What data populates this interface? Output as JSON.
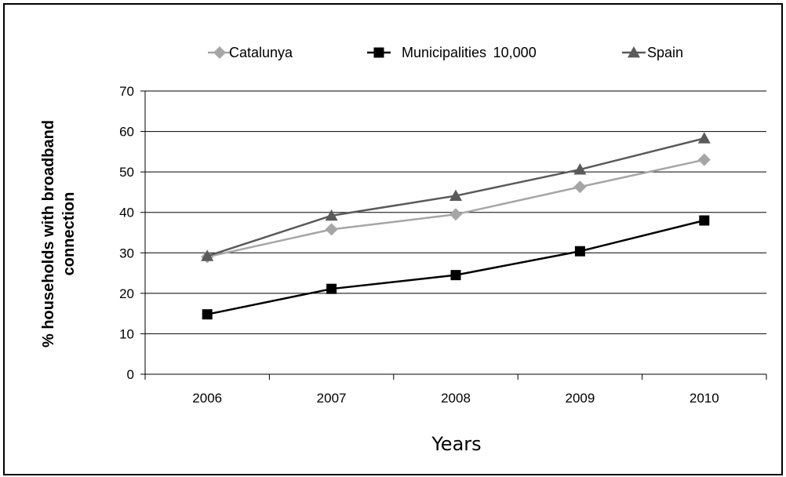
{
  "chart_data": {
    "type": "line",
    "categories": [
      "2006",
      "2007",
      "2008",
      "2009",
      "2010"
    ],
    "series": [
      {
        "name": "Catalunya",
        "values": [
          29,
          35.8,
          39.5,
          46.3,
          53
        ],
        "color": "#a6a6a6",
        "marker": "diamond"
      },
      {
        "name": "Municipalities  10,000",
        "values": [
          14.8,
          21.1,
          24.5,
          30.4,
          38
        ],
        "color": "#000000",
        "marker": "square"
      },
      {
        "name": "Spain",
        "values": [
          29.2,
          39.2,
          44.1,
          50.6,
          58.3
        ],
        "color": "#5a5a5a",
        "marker": "triangle"
      }
    ],
    "title": "",
    "xlabel": "Years",
    "ylabel_lines": [
      "% households with broadband",
      "connection"
    ],
    "ylim": [
      0,
      70
    ],
    "yticks": [
      0,
      10,
      20,
      30,
      40,
      50,
      60,
      70
    ],
    "grid": true,
    "legend_position": "top"
  }
}
